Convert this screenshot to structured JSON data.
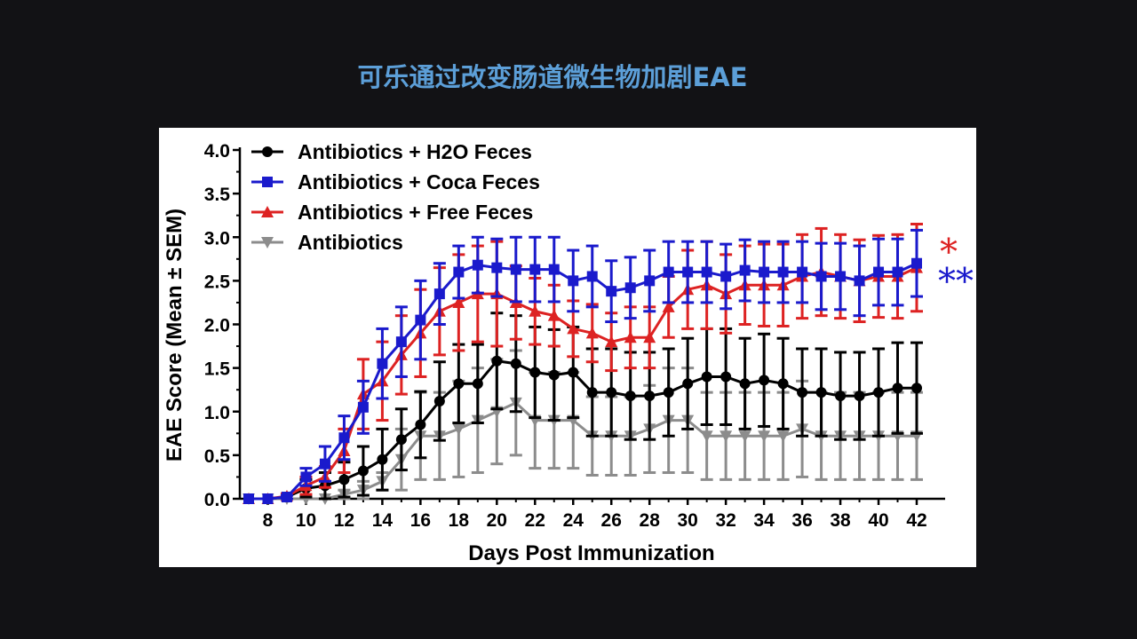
{
  "slide": {
    "title": "可乐通过改变肠道微生物加剧EAE"
  },
  "chart_data": {
    "type": "line",
    "xlabel": "Days Post Immunization",
    "ylabel": "EAE Score (Mean ± SEM)",
    "xlim": [
      7,
      42
    ],
    "ylim": [
      0,
      4
    ],
    "x_ticks": [
      8,
      10,
      12,
      14,
      16,
      18,
      20,
      22,
      24,
      26,
      28,
      30,
      32,
      34,
      36,
      38,
      40,
      42
    ],
    "x_tick_labels": [
      "8",
      "10",
      "12",
      "14",
      "16",
      "18",
      "20",
      "22",
      "24",
      "26",
      "28",
      "30",
      "32",
      "34",
      "36",
      "38",
      "40",
      "42"
    ],
    "y_ticks": [
      0,
      0.5,
      1,
      1.5,
      2,
      2.5,
      3,
      3.5,
      4
    ],
    "y_tick_labels": [
      "0.0",
      "0.5",
      "1.0",
      "1.5",
      "2.0",
      "2.5",
      "3.0",
      "3.5",
      "4.0"
    ],
    "legend_position": "top-left",
    "x": [
      7,
      8,
      9,
      10,
      11,
      12,
      13,
      14,
      15,
      16,
      17,
      18,
      19,
      20,
      21,
      22,
      23,
      24,
      25,
      26,
      27,
      28,
      29,
      30,
      31,
      32,
      33,
      34,
      35,
      36,
      37,
      38,
      39,
      40,
      41,
      42
    ],
    "series": [
      {
        "name": "Antibiotics",
        "color": "#8c8c8c",
        "marker": "triangle-down",
        "values": [
          0,
          0,
          0,
          0,
          0,
          0.05,
          0.1,
          0.2,
          0.45,
          0.72,
          0.72,
          0.8,
          0.9,
          1.0,
          1.1,
          0.9,
          0.9,
          0.9,
          0.72,
          0.72,
          0.72,
          0.8,
          0.9,
          0.9,
          0.72,
          0.72,
          0.72,
          0.72,
          0.72,
          0.8,
          0.72,
          0.72,
          0.72,
          0.72,
          0.72,
          0.72
        ],
        "sem": [
          0,
          0,
          0,
          0,
          0,
          0.05,
          0.1,
          0.1,
          0.35,
          0.5,
          0.5,
          0.55,
          0.6,
          0.6,
          0.6,
          0.55,
          0.55,
          0.55,
          0.45,
          0.45,
          0.45,
          0.5,
          0.6,
          0.6,
          0.5,
          0.5,
          0.5,
          0.5,
          0.5,
          0.55,
          0.5,
          0.5,
          0.5,
          0.5,
          0.5,
          0.5
        ]
      },
      {
        "name": "Antibiotics + H2O Feces",
        "color": "#000000",
        "marker": "circle",
        "values": [
          0,
          0,
          0.02,
          0.12,
          0.15,
          0.22,
          0.32,
          0.45,
          0.68,
          0.85,
          1.12,
          1.32,
          1.32,
          1.58,
          1.55,
          1.45,
          1.42,
          1.45,
          1.22,
          1.22,
          1.18,
          1.18,
          1.22,
          1.32,
          1.4,
          1.4,
          1.32,
          1.36,
          1.32,
          1.22,
          1.22,
          1.18,
          1.18,
          1.22,
          1.27,
          1.27
        ],
        "sem": [
          0,
          0,
          0.02,
          0.1,
          0.15,
          0.2,
          0.28,
          0.35,
          0.35,
          0.38,
          0.45,
          0.45,
          0.45,
          0.55,
          0.55,
          0.52,
          0.52,
          0.52,
          0.5,
          0.5,
          0.5,
          0.5,
          0.5,
          0.52,
          0.55,
          0.55,
          0.52,
          0.53,
          0.52,
          0.5,
          0.5,
          0.5,
          0.5,
          0.5,
          0.52,
          0.52
        ]
      },
      {
        "name": "Antibiotics + Free Feces",
        "color": "#dd2222",
        "marker": "triangle-up",
        "values": [
          0,
          0,
          0.03,
          0.15,
          0.25,
          0.55,
          1.2,
          1.35,
          1.65,
          1.9,
          2.15,
          2.25,
          2.35,
          2.35,
          2.25,
          2.15,
          2.1,
          1.95,
          1.9,
          1.8,
          1.85,
          1.85,
          2.2,
          2.4,
          2.45,
          2.35,
          2.45,
          2.45,
          2.45,
          2.55,
          2.6,
          2.55,
          2.5,
          2.55,
          2.55,
          2.65
        ],
        "sem": [
          0,
          0,
          0.03,
          0.1,
          0.12,
          0.25,
          0.4,
          0.45,
          0.45,
          0.5,
          0.5,
          0.55,
          0.55,
          0.6,
          0.42,
          0.38,
          0.35,
          0.32,
          0.33,
          0.33,
          0.35,
          0.35,
          0.35,
          0.45,
          0.5,
          0.45,
          0.45,
          0.47,
          0.47,
          0.48,
          0.5,
          0.48,
          0.47,
          0.47,
          0.48,
          0.5
        ]
      },
      {
        "name": "Antibiotics + Coca Feces",
        "color": "#1a1acc",
        "marker": "square",
        "values": [
          0,
          0,
          0.02,
          0.25,
          0.4,
          0.7,
          1.05,
          1.55,
          1.8,
          2.05,
          2.35,
          2.6,
          2.68,
          2.65,
          2.63,
          2.63,
          2.63,
          2.5,
          2.55,
          2.38,
          2.42,
          2.5,
          2.6,
          2.6,
          2.6,
          2.55,
          2.62,
          2.6,
          2.6,
          2.6,
          2.55,
          2.55,
          2.5,
          2.6,
          2.6,
          2.7
        ],
        "sem": [
          0,
          0,
          0.02,
          0.1,
          0.2,
          0.25,
          0.3,
          0.4,
          0.4,
          0.45,
          0.35,
          0.3,
          0.32,
          0.33,
          0.37,
          0.37,
          0.37,
          0.35,
          0.35,
          0.35,
          0.35,
          0.35,
          0.35,
          0.35,
          0.35,
          0.37,
          0.35,
          0.35,
          0.35,
          0.35,
          0.38,
          0.38,
          0.4,
          0.38,
          0.38,
          0.38
        ]
      }
    ],
    "legend_order": [
      "Antibiotics + H2O Feces",
      "Antibiotics + Coca Feces",
      "Antibiotics + Free Feces",
      "Antibiotics"
    ],
    "annotations": [
      {
        "text": "*",
        "color": "#dd2222",
        "series": "Antibiotics + Free Feces"
      },
      {
        "text": "**",
        "color": "#1a1acc",
        "series": "Antibiotics + Coca Feces"
      }
    ]
  }
}
